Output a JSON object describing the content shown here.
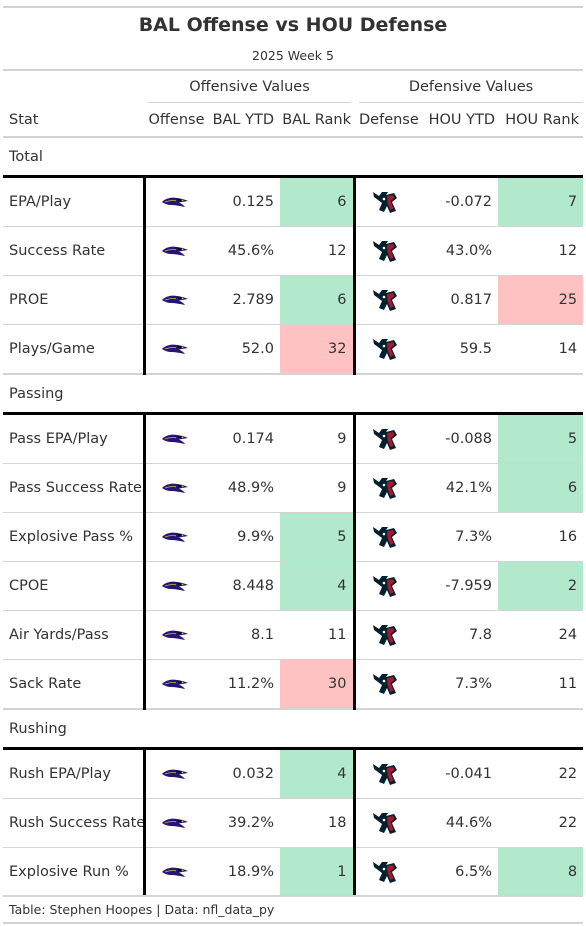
{
  "title": "BAL Offense vs HOU Defense",
  "subtitle": "2025 Week 5",
  "spanners": {
    "offense": "Offensive Values",
    "defense": "Defensive Values"
  },
  "columns": [
    "Stat",
    "Offense",
    "BAL YTD",
    "BAL Rank",
    "Defense",
    "HOU YTD",
    "HOU Rank"
  ],
  "colors": {
    "good": "#b2e8cc",
    "bad": "#ffc2c2",
    "ravens_purple": "#241773",
    "texans_navy": "#03202f",
    "texans_red": "#a71930"
  },
  "groups": [
    {
      "name": "Total",
      "rows": [
        {
          "stat": "EPA/Play",
          "off_logo": "ravens-logo",
          "bal_ytd": "0.125",
          "bal_rank": "6",
          "bal_rank_status": "good",
          "def_logo": "texans-logo",
          "hou_ytd": "-0.072",
          "hou_rank": "7",
          "hou_rank_status": "good"
        },
        {
          "stat": "Success Rate",
          "off_logo": "ravens-logo",
          "bal_ytd": "45.6%",
          "bal_rank": "12",
          "bal_rank_status": "",
          "def_logo": "texans-logo",
          "hou_ytd": "43.0%",
          "hou_rank": "12",
          "hou_rank_status": ""
        },
        {
          "stat": "PROE",
          "off_logo": "ravens-logo",
          "bal_ytd": "2.789",
          "bal_rank": "6",
          "bal_rank_status": "good",
          "def_logo": "texans-logo",
          "hou_ytd": "0.817",
          "hou_rank": "25",
          "hou_rank_status": "bad"
        },
        {
          "stat": "Plays/Game",
          "off_logo": "ravens-logo",
          "bal_ytd": "52.0",
          "bal_rank": "32",
          "bal_rank_status": "bad",
          "def_logo": "texans-logo",
          "hou_ytd": "59.5",
          "hou_rank": "14",
          "hou_rank_status": ""
        }
      ]
    },
    {
      "name": "Passing",
      "rows": [
        {
          "stat": "Pass EPA/Play",
          "off_logo": "ravens-logo",
          "bal_ytd": "0.174",
          "bal_rank": "9",
          "bal_rank_status": "",
          "def_logo": "texans-logo",
          "hou_ytd": "-0.088",
          "hou_rank": "5",
          "hou_rank_status": "good"
        },
        {
          "stat": "Pass Success Rate",
          "off_logo": "ravens-logo",
          "bal_ytd": "48.9%",
          "bal_rank": "9",
          "bal_rank_status": "",
          "def_logo": "texans-logo",
          "hou_ytd": "42.1%",
          "hou_rank": "6",
          "hou_rank_status": "good"
        },
        {
          "stat": "Explosive Pass %",
          "off_logo": "ravens-logo",
          "bal_ytd": "9.9%",
          "bal_rank": "5",
          "bal_rank_status": "good",
          "def_logo": "texans-logo",
          "hou_ytd": "7.3%",
          "hou_rank": "16",
          "hou_rank_status": ""
        },
        {
          "stat": "CPOE",
          "off_logo": "ravens-logo",
          "bal_ytd": "8.448",
          "bal_rank": "4",
          "bal_rank_status": "good",
          "def_logo": "texans-logo",
          "hou_ytd": "-7.959",
          "hou_rank": "2",
          "hou_rank_status": "good"
        },
        {
          "stat": "Air Yards/Pass",
          "off_logo": "ravens-logo",
          "bal_ytd": "8.1",
          "bal_rank": "11",
          "bal_rank_status": "",
          "def_logo": "texans-logo",
          "hou_ytd": "7.8",
          "hou_rank": "24",
          "hou_rank_status": ""
        },
        {
          "stat": "Sack Rate",
          "off_logo": "ravens-logo",
          "bal_ytd": "11.2%",
          "bal_rank": "30",
          "bal_rank_status": "bad",
          "def_logo": "texans-logo",
          "hou_ytd": "7.3%",
          "hou_rank": "11",
          "hou_rank_status": ""
        }
      ]
    },
    {
      "name": "Rushing",
      "rows": [
        {
          "stat": "Rush EPA/Play",
          "off_logo": "ravens-logo",
          "bal_ytd": "0.032",
          "bal_rank": "4",
          "bal_rank_status": "good",
          "def_logo": "texans-logo",
          "hou_ytd": "-0.041",
          "hou_rank": "22",
          "hou_rank_status": ""
        },
        {
          "stat": "Rush Success Rate",
          "off_logo": "ravens-logo",
          "bal_ytd": "39.2%",
          "bal_rank": "18",
          "bal_rank_status": "",
          "def_logo": "texans-logo",
          "hou_ytd": "44.6%",
          "hou_rank": "22",
          "hou_rank_status": ""
        },
        {
          "stat": "Explosive Run %",
          "off_logo": "ravens-logo",
          "bal_ytd": "18.9%",
          "bal_rank": "1",
          "bal_rank_status": "good",
          "def_logo": "texans-logo",
          "hou_ytd": "6.5%",
          "hou_rank": "8",
          "hou_rank_status": "good"
        }
      ]
    }
  ],
  "footer": "Table: Stephen Hoopes | Data: nfl_data_py"
}
